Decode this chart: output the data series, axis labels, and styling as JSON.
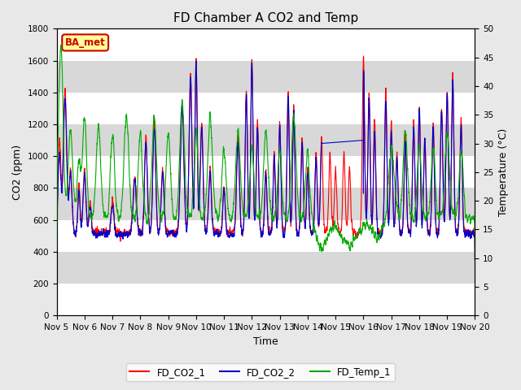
{
  "title": "FD Chamber A CO2 and Temp",
  "xlabel": "Time",
  "ylabel_left": "CO2 (ppm)",
  "ylabel_right": "Temperature (°C)",
  "ylim_left": [
    0,
    1800
  ],
  "ylim_right": [
    0,
    50
  ],
  "yticks_left": [
    0,
    200,
    400,
    600,
    800,
    1000,
    1200,
    1400,
    1600,
    1800
  ],
  "yticks_right": [
    0,
    5,
    10,
    15,
    20,
    25,
    30,
    35,
    40,
    45,
    50
  ],
  "xtick_labels": [
    "Nov 5",
    "Nov 6",
    "Nov 7",
    "Nov 8",
    "Nov 9",
    "Nov 10",
    "Nov 11",
    "Nov 12",
    "Nov 13",
    "Nov 14",
    "Nov 15",
    "Nov 16",
    "Nov 17",
    "Nov 18",
    "Nov 19",
    "Nov 20"
  ],
  "legend_label_co2_1": "FD_CO2_1",
  "legend_label_co2_2": "FD_CO2_2",
  "legend_label_temp": "FD_Temp_1",
  "color_co2_1": "#ff0000",
  "color_co2_2": "#0000cc",
  "color_temp": "#00aa00",
  "annotation_text": "BA_met",
  "annotation_color": "#cc0000",
  "annotation_bg": "#ffff99",
  "background_color": "#e8e8e8",
  "plot_bg": "#ffffff",
  "title_fontsize": 11,
  "axis_fontsize": 9,
  "tick_fontsize": 7.5,
  "linewidth": 0.8,
  "band_color": "#d8d8d8"
}
